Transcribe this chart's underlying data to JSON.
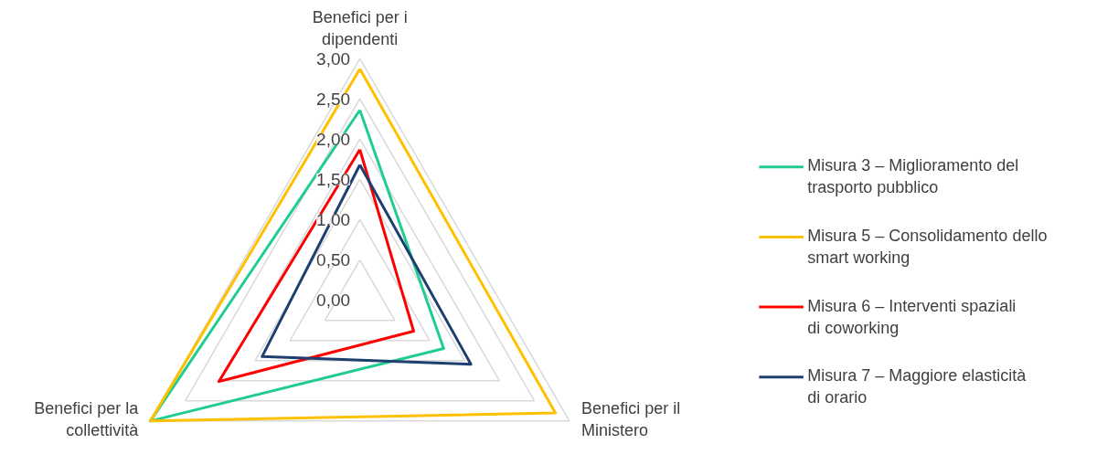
{
  "chart_data": {
    "type": "radar",
    "categories": [
      "Benefici per i dipendenti",
      "Benefici per il Ministero",
      "Benefici per la collettività"
    ],
    "series": [
      {
        "name": "Misura 3 – Miglioramento del trasporto pubblico",
        "color": "#20cc90",
        "values": [
          2.36,
          1.2,
          3.0
        ]
      },
      {
        "name": "Misura 5 – Consolidamento dello smart working",
        "color": "#ffc000",
        "values": [
          2.87,
          2.8,
          3.0
        ]
      },
      {
        "name": "Misura 6 – Interventi spaziali di coworking",
        "color": "#ff0000",
        "values": [
          1.87,
          0.77,
          2.02
        ]
      },
      {
        "name": "Misura 7 – Maggiore elasticità di orario",
        "color": "#1f3f70",
        "values": [
          1.68,
          1.59,
          1.4
        ]
      }
    ],
    "ylim": [
      0,
      3
    ],
    "yticks": [
      {
        "value": 0,
        "label": "0,00"
      },
      {
        "value": 0.5,
        "label": "0,50"
      },
      {
        "value": 1,
        "label": "1,00"
      },
      {
        "value": 1.5,
        "label": "1,50"
      },
      {
        "value": 2,
        "label": "2,00"
      },
      {
        "value": 2.5,
        "label": "2,50"
      },
      {
        "value": 3,
        "label": "3,00"
      }
    ],
    "grid": true,
    "legend": "right"
  }
}
